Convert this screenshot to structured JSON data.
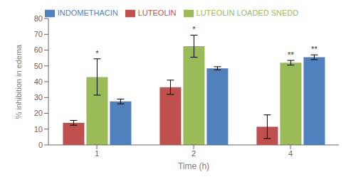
{
  "chart_data": {
    "type": "bar",
    "categories": [
      "1",
      "2",
      "4"
    ],
    "series": [
      {
        "name": "LUTEOLIN",
        "color": "#c0504d",
        "values": [
          14.0,
          36.5,
          11.5
        ],
        "errors": [
          1.5,
          4.5,
          7.5
        ]
      },
      {
        "name": "LUTEOLIN LOADED SNEDD",
        "color": "#9bbb59",
        "values": [
          43.0,
          62.5,
          52.0
        ],
        "errors": [
          11.5,
          7.0,
          1.5
        ]
      },
      {
        "name": "INDOMETHACIN",
        "color": "#4f81bd",
        "values": [
          27.5,
          48.5,
          55.5
        ],
        "errors": [
          1.5,
          1.0,
          1.5
        ]
      }
    ],
    "annotations": [
      {
        "category": "1",
        "series": "LUTEOLIN LOADED SNEDD",
        "text": "*"
      },
      {
        "category": "2",
        "series": "LUTEOLIN LOADED SNEDD",
        "text": "*"
      },
      {
        "category": "4",
        "series": "LUTEOLIN LOADED SNEDD",
        "text": "**"
      },
      {
        "category": "4",
        "series": "INDOMETHACIN",
        "text": "**"
      }
    ],
    "xlabel": "Time (h)",
    "ylabel": "% inhibition in edema",
    "ylim": [
      0,
      80
    ],
    "yticks": [
      0,
      10,
      20,
      30,
      40,
      50,
      60,
      70,
      80
    ],
    "grid": false,
    "legend": "top"
  }
}
